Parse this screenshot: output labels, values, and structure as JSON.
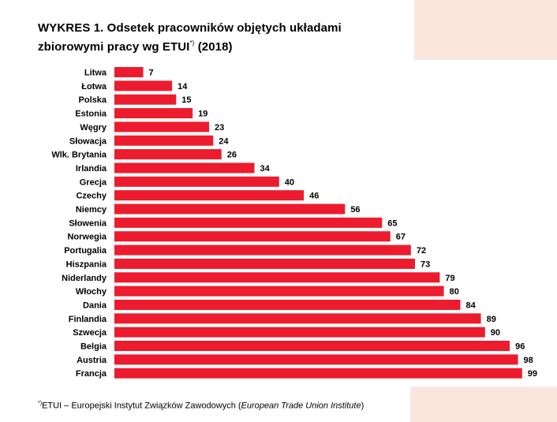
{
  "title": {
    "line1": "WYKRES 1. Odsetek pracowników objętych układami",
    "line2_main": "zbiorowymi pracy wg ETUI",
    "line2_sup": "*)",
    "line2_tail": " (2018)"
  },
  "footnote": {
    "mark": "*)",
    "text": "ETUI – Europejski Instytut Związków Zawodowych (",
    "italic": "European Trade Union Institute",
    "close": ")"
  },
  "colors": {
    "bar": "#ec1c2e",
    "accent_background": "#fbe6de"
  },
  "chart_data": {
    "type": "bar",
    "orientation": "horizontal",
    "categories": [
      "Litwa",
      "Łotwa",
      "Polska",
      "Estonia",
      "Węgry",
      "Słowacja",
      "Wlk. Brytania",
      "Irlandia",
      "Grecja",
      "Czechy",
      "Niemcy",
      "Słowenia",
      "Norwegia",
      "Portugalia",
      "Hiszpania",
      "Niderlandy",
      "Włochy",
      "Dania",
      "Finlandia",
      "Szwecja",
      "Belgia",
      "Austria",
      "Francja"
    ],
    "values": [
      7,
      14,
      15,
      19,
      23,
      24,
      26,
      34,
      40,
      46,
      56,
      65,
      67,
      72,
      73,
      79,
      80,
      84,
      89,
      90,
      96,
      98,
      99
    ],
    "xlim": [
      0,
      100
    ],
    "grid": false,
    "data_labels": true
  }
}
